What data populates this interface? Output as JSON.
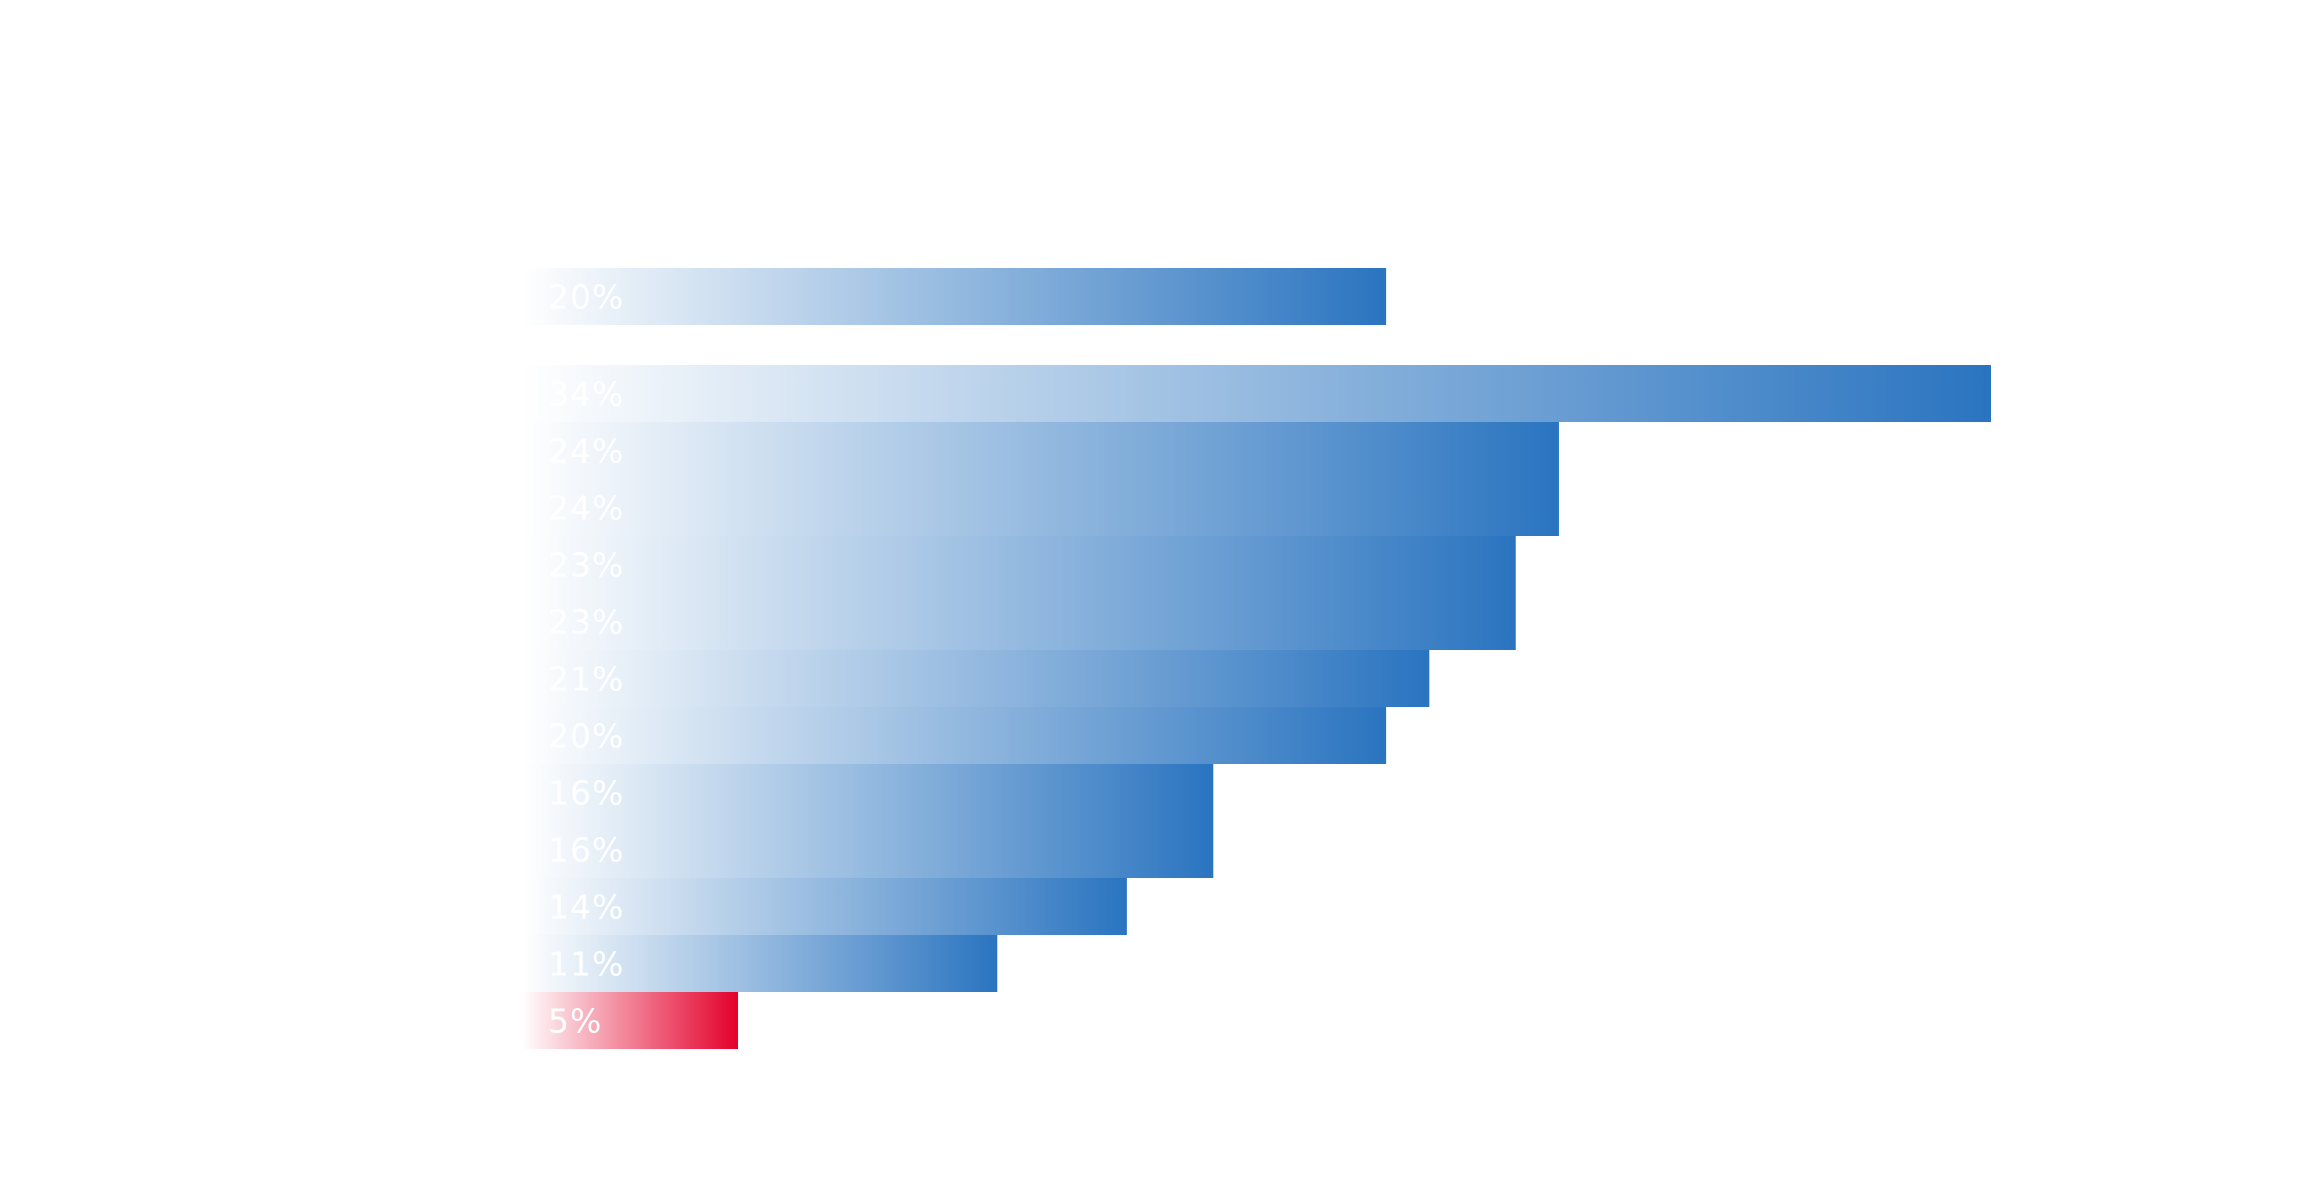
{
  "chart_data": {
    "type": "bar",
    "orientation": "horizontal",
    "title": "",
    "xlabel": "",
    "ylabel": "",
    "xlim": [
      0,
      34
    ],
    "grid": false,
    "legend": "none",
    "colors": {
      "default_bar": "#2a74c0",
      "highlight_bar": "#e4002b",
      "label": "#ffffff",
      "background": "#ffffff"
    },
    "reference": {
      "value": 20,
      "label": "20%"
    },
    "bars": [
      {
        "value": 34,
        "label": "34%",
        "highlight": false
      },
      {
        "value": 24,
        "label": "24%",
        "highlight": false
      },
      {
        "value": 24,
        "label": "24%",
        "highlight": false
      },
      {
        "value": 23,
        "label": "23%",
        "highlight": false
      },
      {
        "value": 23,
        "label": "23%",
        "highlight": false
      },
      {
        "value": 21,
        "label": "21%",
        "highlight": false
      },
      {
        "value": 20,
        "label": "20%",
        "highlight": false
      },
      {
        "value": 16,
        "label": "16%",
        "highlight": false
      },
      {
        "value": 16,
        "label": "16%",
        "highlight": false
      },
      {
        "value": 14,
        "label": "14%",
        "highlight": false
      },
      {
        "value": 11,
        "label": "11%",
        "highlight": false
      },
      {
        "value": 5,
        "label": "5%",
        "highlight": true
      }
    ]
  }
}
